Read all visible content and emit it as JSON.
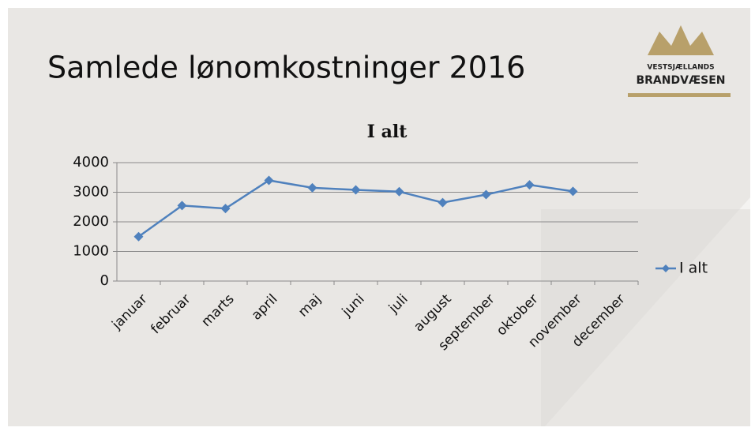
{
  "header": {
    "title": "Samlede lønomkostninger 2016",
    "logo_top": "VESTSJÆLLANDS",
    "logo_bottom": "BRANDVÆSEN"
  },
  "chart_data": {
    "type": "line",
    "title": "I alt",
    "categories": [
      "januar",
      "februar",
      "marts",
      "april",
      "maj",
      "juni",
      "juli",
      "august",
      "september",
      "oktober",
      "november",
      "december"
    ],
    "series": [
      {
        "name": "I alt",
        "color": "#4f81bd",
        "values": [
          1500,
          2550,
          2450,
          3400,
          3150,
          3080,
          3020,
          2650,
          2920,
          3250,
          3030,
          null
        ]
      }
    ],
    "ylim": [
      0,
      4000
    ],
    "yticks": [
      0,
      1000,
      2000,
      3000,
      4000
    ],
    "grid": true,
    "legend": "right"
  }
}
